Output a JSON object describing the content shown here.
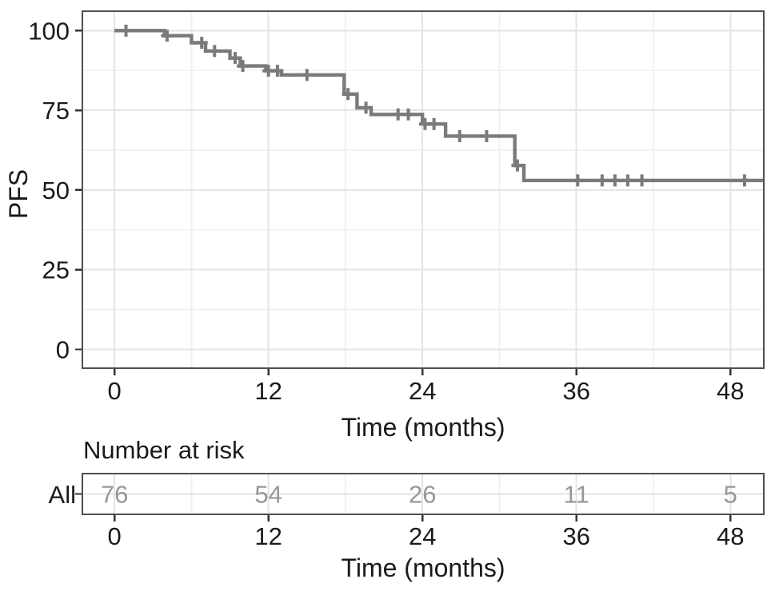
{
  "figure": {
    "background": "#ffffff"
  },
  "colors": {
    "curve": "#7a7a7a",
    "censor": "#7a7a7a",
    "panel_border": "#4f4f4f",
    "grid_major": "#e4e4e4",
    "grid_minor": "#f1f1f1",
    "tick_mark": "#333333",
    "axis_text": "#1a1a1a",
    "risk_count_text": "#979797"
  },
  "chart_data": {
    "type": "line",
    "subtype": "kaplan_meier_step_survival_curve",
    "title": "",
    "xlabel": "Time (months)",
    "ylabel": "PFS",
    "x_ticks": [
      0,
      12,
      24,
      36,
      48
    ],
    "y_ticks": [
      0,
      25,
      50,
      75,
      100
    ],
    "xlim": [
      -2.5,
      50.6
    ],
    "ylim": [
      -5.9,
      106.1
    ],
    "grid": "major and minor light-gray gridlines on white panel",
    "legend_position": "none",
    "series": [
      {
        "name": "All",
        "color": "#7a7a7a",
        "steps": [
          [
            0,
            100
          ],
          [
            3.9,
            98.4
          ],
          [
            6.0,
            96.2
          ],
          [
            7.1,
            93.6
          ],
          [
            9.0,
            91.4
          ],
          [
            9.8,
            88.9
          ],
          [
            11.8,
            87.4
          ],
          [
            13.0,
            86.1
          ],
          [
            17.9,
            80.1
          ],
          [
            18.9,
            75.8
          ],
          [
            20.0,
            73.7
          ],
          [
            24.0,
            70.7
          ],
          [
            25.8,
            66.9
          ],
          [
            31.2,
            57.7
          ],
          [
            31.9,
            53.0
          ]
        ],
        "end_time": 50.6,
        "censors": [
          [
            0.9,
            100
          ],
          [
            4.1,
            98.4
          ],
          [
            6.8,
            96.2
          ],
          [
            7.8,
            93.6
          ],
          [
            9.4,
            91.4
          ],
          [
            10.0,
            88.9
          ],
          [
            12.0,
            87.4
          ],
          [
            12.7,
            87.4
          ],
          [
            15.0,
            86.1
          ],
          [
            18.2,
            80.1
          ],
          [
            19.6,
            75.8
          ],
          [
            22.1,
            73.7
          ],
          [
            22.9,
            73.7
          ],
          [
            24.2,
            70.7
          ],
          [
            24.9,
            70.7
          ],
          [
            26.9,
            66.9
          ],
          [
            29.0,
            66.9
          ],
          [
            31.4,
            57.7
          ],
          [
            36.1,
            53.0
          ],
          [
            38.0,
            53.0
          ],
          [
            39.0,
            53.0
          ],
          [
            40.0,
            53.0
          ],
          [
            41.1,
            53.0
          ],
          [
            49.1,
            53.0
          ]
        ]
      }
    ],
    "risk_table": {
      "title": "Number at risk",
      "rows": [
        {
          "label": "All",
          "times": [
            0,
            12,
            24,
            36,
            48
          ],
          "counts": [
            76,
            54,
            26,
            11,
            5
          ]
        }
      ]
    }
  }
}
